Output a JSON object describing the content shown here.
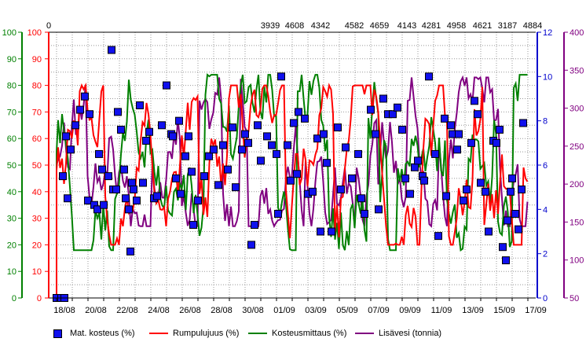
{
  "chart_data": {
    "type": "line",
    "x_axis": {
      "ticks": [
        "18/08",
        "20/08",
        "22/08",
        "24/08",
        "26/08",
        "28/08",
        "30/08",
        "01/09",
        "03/09",
        "05/09",
        "07/09",
        "09/09",
        "11/09",
        "13/09",
        "15/09",
        "17/09"
      ]
    },
    "top_axis": {
      "labels": [
        "0",
        "3939",
        "4608",
        "4342",
        "4582",
        "4659",
        "4143",
        "4281",
        "4958",
        "4621",
        "3187",
        "4884"
      ]
    },
    "y_axis_left_outer": {
      "min": 0,
      "max": 100,
      "ticks": [
        "0",
        "10",
        "20",
        "30",
        "40",
        "50",
        "60",
        "70",
        "80",
        "90",
        "100"
      ],
      "color": "#008000"
    },
    "y_axis_left_inner": {
      "min": 0,
      "max": 100,
      "ticks": [
        "0",
        "10",
        "20",
        "30",
        "40",
        "50",
        "60",
        "70",
        "80",
        "90",
        "100"
      ],
      "color": "#ff0000"
    },
    "y_axis_right_inner": {
      "min": 0,
      "max": 12,
      "ticks": [
        "0",
        "2",
        "4",
        "6",
        "8",
        "10",
        "12"
      ],
      "color": "#0000cc"
    },
    "y_axis_right_outer": {
      "min": 50,
      "max": 400,
      "ticks": [
        "50",
        "100",
        "150",
        "200",
        "250",
        "300",
        "350",
        "400"
      ],
      "color": "#800080"
    },
    "grid": true,
    "legend_position": "bottom",
    "series": [
      {
        "name": "Mat. kosteus (%)",
        "kind": "markers",
        "color": "#1010ee",
        "axis": "right_inner",
        "points": [
          [
            17.5,
            0
          ],
          [
            17.8,
            0
          ],
          [
            18.0,
            0
          ],
          [
            17.9,
            5.5
          ],
          [
            18.2,
            4.5
          ],
          [
            18.1,
            7.3
          ],
          [
            18.4,
            6.7
          ],
          [
            18.7,
            7.8
          ],
          [
            19.0,
            8.5
          ],
          [
            19.3,
            9.1
          ],
          [
            19.6,
            8.3
          ],
          [
            19.5,
            4.4
          ],
          [
            19.9,
            4.2
          ],
          [
            20.1,
            4.0
          ],
          [
            20.2,
            6.5
          ],
          [
            20.4,
            5.8
          ],
          [
            20.5,
            4.2
          ],
          [
            20.8,
            5.5
          ],
          [
            21.0,
            11.2
          ],
          [
            21.1,
            4.9
          ],
          [
            21.3,
            4.9
          ],
          [
            21.4,
            8.4
          ],
          [
            21.6,
            7.6
          ],
          [
            21.8,
            5.8
          ],
          [
            21.9,
            4.5
          ],
          [
            22.1,
            4.0
          ],
          [
            22.2,
            2.1
          ],
          [
            22.3,
            5.2
          ],
          [
            22.4,
            4.9
          ],
          [
            22.6,
            4.4
          ],
          [
            22.8,
            8.7
          ],
          [
            23.0,
            5.2
          ],
          [
            23.2,
            7.1
          ],
          [
            23.4,
            7.5
          ],
          [
            23.7,
            4.5
          ],
          [
            23.9,
            4.6
          ],
          [
            24.2,
            7.8
          ],
          [
            24.5,
            9.6
          ],
          [
            24.8,
            7.4
          ],
          [
            24.9,
            7.3
          ],
          [
            25.1,
            5.4
          ],
          [
            25.3,
            8.0
          ],
          [
            25.4,
            4.7
          ],
          [
            25.7,
            6.4
          ],
          [
            25.9,
            7.3
          ],
          [
            26.1,
            5.7
          ],
          [
            26.2,
            3.3
          ],
          [
            26.5,
            4.4
          ],
          [
            26.9,
            5.5
          ],
          [
            27.2,
            6.4
          ],
          [
            27.5,
            6.7
          ],
          [
            27.8,
            5.1
          ],
          [
            28.1,
            6.9
          ],
          [
            28.4,
            5.8
          ],
          [
            28.7,
            7.7
          ],
          [
            28.9,
            5.0
          ],
          [
            29.3,
            6.7
          ],
          [
            29.5,
            7.4
          ],
          [
            29.7,
            7.0
          ],
          [
            29.9,
            2.4
          ],
          [
            30.1,
            3.3
          ],
          [
            30.3,
            7.8
          ],
          [
            30.5,
            6.2
          ],
          [
            30.9,
            7.3
          ],
          [
            31.2,
            6.9
          ],
          [
            31.5,
            6.5
          ],
          [
            31.6,
            3.8
          ],
          [
            31.8,
            10.0
          ],
          [
            32.2,
            6.9
          ],
          [
            32.4,
            5.3
          ],
          [
            32.6,
            7.9
          ],
          [
            32.8,
            5.6
          ],
          [
            32.9,
            8.4
          ],
          [
            33.3,
            8.1
          ],
          [
            33.5,
            4.7
          ],
          [
            33.8,
            4.8
          ],
          [
            34.1,
            7.2
          ],
          [
            34.3,
            3.0
          ],
          [
            34.5,
            7.4
          ],
          [
            34.7,
            6.1
          ],
          [
            35.0,
            3.0
          ],
          [
            35.4,
            7.7
          ],
          [
            35.6,
            4.9
          ],
          [
            35.9,
            6.8
          ],
          [
            36.3,
            5.4
          ],
          [
            36.7,
            6.5
          ],
          [
            36.9,
            4.5
          ],
          [
            37.1,
            3.8
          ],
          [
            37.5,
            8.5
          ],
          [
            37.8,
            7.4
          ],
          [
            38.0,
            4.0
          ],
          [
            38.3,
            9.0
          ],
          [
            38.6,
            8.3
          ],
          [
            38.9,
            8.3
          ],
          [
            39.2,
            8.6
          ],
          [
            39.5,
            7.6
          ],
          [
            39.7,
            5.4
          ],
          [
            40.0,
            4.7
          ],
          [
            40.3,
            5.9
          ],
          [
            40.5,
            6.2
          ],
          [
            40.8,
            5.5
          ],
          [
            40.9,
            5.3
          ],
          [
            41.2,
            10.0
          ],
          [
            41.6,
            6.5
          ],
          [
            41.8,
            2.8
          ],
          [
            42.2,
            8.1
          ],
          [
            42.3,
            4.6
          ],
          [
            42.6,
            7.8
          ],
          [
            42.7,
            7.4
          ],
          [
            43.0,
            6.7
          ],
          [
            43.1,
            7.4
          ],
          [
            43.4,
            4.4
          ],
          [
            43.6,
            4.9
          ],
          [
            43.9,
            7.0
          ],
          [
            44.1,
            8.9
          ],
          [
            44.3,
            8.3
          ],
          [
            44.5,
            5.2
          ],
          [
            44.8,
            4.8
          ],
          [
            45.0,
            3.0
          ],
          [
            45.3,
            7.1
          ],
          [
            45.5,
            7.0
          ],
          [
            45.7,
            7.6
          ],
          [
            45.9,
            2.3
          ],
          [
            46.1,
            1.7
          ],
          [
            46.2,
            3.5
          ],
          [
            46.4,
            4.8
          ],
          [
            46.5,
            5.4
          ],
          [
            46.7,
            3.8
          ],
          [
            46.9,
            3.1
          ],
          [
            47.1,
            4.9
          ],
          [
            47.2,
            7.9
          ]
        ]
      },
      {
        "name": "Rumpulujuus (%)",
        "kind": "line",
        "color": "#ff0000",
        "axis": "left_inner"
      },
      {
        "name": "Kosteusmittaus (%)",
        "kind": "line",
        "color": "#008000",
        "axis": "left_outer"
      },
      {
        "name": "Lisävesi (tonnia)",
        "kind": "line",
        "color": "#800080",
        "axis": "right_outer"
      }
    ]
  }
}
